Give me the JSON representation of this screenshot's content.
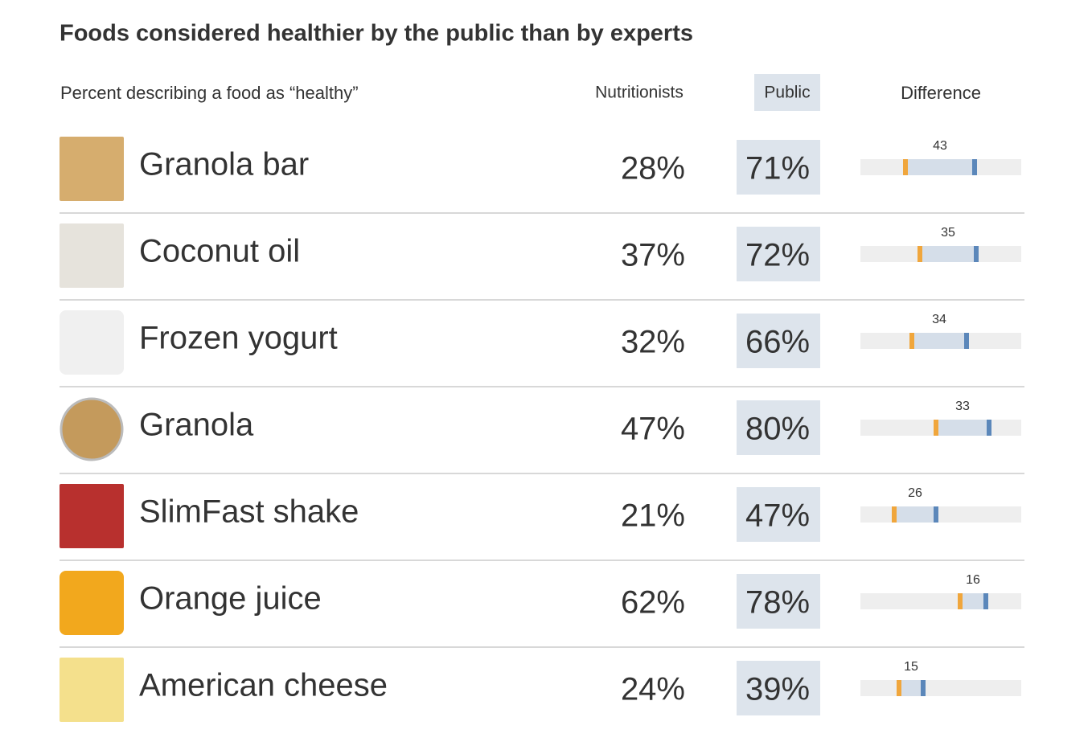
{
  "title": "Foods considered healthier by the public than by experts",
  "subtitle": "Percent describing a food as “healthy”",
  "columns": {
    "nutritionists": "Nutritionists",
    "public": "Public",
    "difference": "Difference"
  },
  "scale": {
    "xlim": [
      0,
      100
    ]
  },
  "rows": [
    {
      "name": "Granola bar",
      "nutritionists": {
        "value": 28,
        "label": "28%"
      },
      "public": {
        "value": 71,
        "label": "71%"
      },
      "difference": 43
    },
    {
      "name": "Coconut oil",
      "nutritionists": {
        "value": 37,
        "label": "37%"
      },
      "public": {
        "value": 72,
        "label": "72%"
      },
      "difference": 35
    },
    {
      "name": "Frozen yogurt",
      "nutritionists": {
        "value": 32,
        "label": "32%"
      },
      "public": {
        "value": 66,
        "label": "66%"
      },
      "difference": 34
    },
    {
      "name": "Granola",
      "nutritionists": {
        "value": 47,
        "label": "47%"
      },
      "public": {
        "value": 80,
        "label": "80%"
      },
      "difference": 33
    },
    {
      "name": "SlimFast shake",
      "nutritionists": {
        "value": 21,
        "label": "21%"
      },
      "public": {
        "value": 47,
        "label": "47%"
      },
      "difference": 26
    },
    {
      "name": "Orange juice",
      "nutritionists": {
        "value": 62,
        "label": "62%"
      },
      "public": {
        "value": 78,
        "label": "78%"
      },
      "difference": 16
    },
    {
      "name": "American cheese",
      "nutritionists": {
        "value": 24,
        "label": "24%"
      },
      "public": {
        "value": 39,
        "label": "39%"
      },
      "difference": 15
    }
  ]
}
